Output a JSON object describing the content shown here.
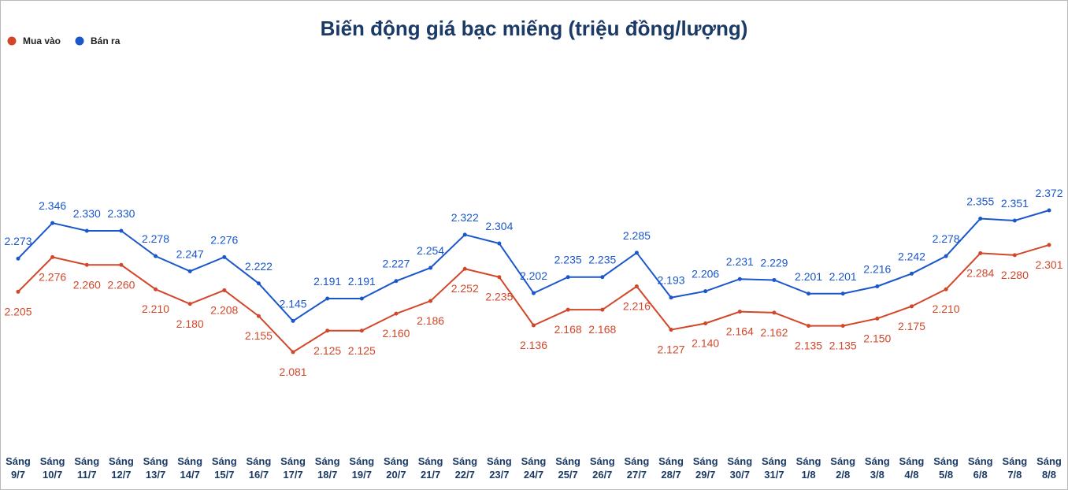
{
  "chart_data": {
    "type": "line",
    "title": "Biến động giá bạc miếng (triệu đồng/lượng)",
    "legend": "top-left",
    "categories": [
      "Sáng 9/7",
      "Sáng 10/7",
      "Sáng 11/7",
      "Sáng 12/7",
      "Sáng 13/7",
      "Sáng 14/7",
      "Sáng 15/7",
      "Sáng 16/7",
      "Sáng 17/7",
      "Sáng 18/7",
      "Sáng 19/7",
      "Sáng 20/7",
      "Sáng 21/7",
      "Sáng 22/7",
      "Sáng 23/7",
      "Sáng 24/7",
      "Sáng 25/7",
      "Sáng 26/7",
      "Sáng 27/7",
      "Sáng 28/7",
      "Sáng 29/7",
      "Sáng 30/7",
      "Sáng 31/7",
      "Sáng 1/8",
      "Sáng 2/8",
      "Sáng 3/8",
      "Sáng 4/8",
      "Sáng 5/8",
      "Sáng 6/8",
      "Sáng 7/8",
      "Sáng 8/8"
    ],
    "series": [
      {
        "name": "Mua vào",
        "color": "#d2472a",
        "values": [
          2.205,
          2.276,
          2.26,
          2.26,
          2.21,
          2.18,
          2.208,
          2.155,
          2.081,
          2.125,
          2.125,
          2.16,
          2.186,
          2.252,
          2.235,
          2.136,
          2.168,
          2.168,
          2.216,
          2.127,
          2.14,
          2.164,
          2.162,
          2.135,
          2.135,
          2.15,
          2.175,
          2.21,
          2.284,
          2.28,
          2.301
        ],
        "value_labels": [
          "2.205",
          "2.276",
          "2.260",
          "2.260",
          "2.210",
          "2.180",
          "2.208",
          "2.155",
          "2.081",
          "2.125",
          "2.125",
          "2.160",
          "2.186",
          "2.252",
          "2.235",
          "2.136",
          "2.168",
          "2.168",
          "2.216",
          "2.127",
          "2.140",
          "2.164",
          "2.162",
          "2.135",
          "2.135",
          "2.150",
          "2.175",
          "2.210",
          "2.284",
          "2.280",
          "2.301"
        ]
      },
      {
        "name": "Bán ra",
        "color": "#1a56cc",
        "values": [
          2.273,
          2.346,
          2.33,
          2.33,
          2.278,
          2.247,
          2.276,
          2.222,
          2.145,
          2.191,
          2.191,
          2.227,
          2.254,
          2.322,
          2.304,
          2.202,
          2.235,
          2.235,
          2.285,
          2.193,
          2.206,
          2.231,
          2.229,
          2.201,
          2.201,
          2.216,
          2.242,
          2.278,
          2.355,
          2.351,
          2.372
        ],
        "value_labels": [
          "2.273",
          "2.346",
          "2.330",
          "2.330",
          "2.278",
          "2.247",
          "2.276",
          "2.222",
          "2.145",
          "2.191",
          "2.191",
          "2.227",
          "2.254",
          "2.322",
          "2.304",
          "2.202",
          "2.235",
          "2.235",
          "2.285",
          "2.193",
          "2.206",
          "2.231",
          "2.229",
          "2.201",
          "2.201",
          "2.216",
          "2.242",
          "2.278",
          "2.355",
          "2.351",
          "2.372"
        ]
      }
    ]
  }
}
